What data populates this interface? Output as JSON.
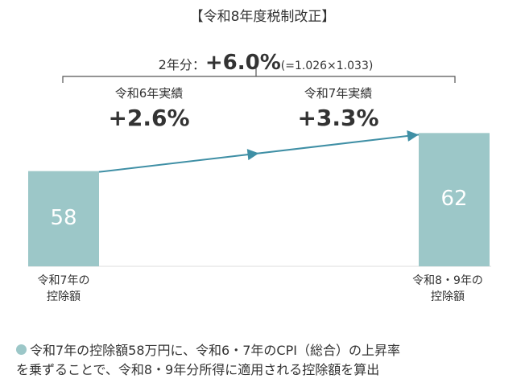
{
  "chart_data": {
    "type": "bar",
    "categories": [
      "令和7年の\n控除額",
      "令和8・9年の\n控除額"
    ],
    "values": [
      58,
      62
    ],
    "color": "#9cc7c8",
    "ylim": [
      48,
      66
    ],
    "grid": false,
    "title": "【令和8年度税制改正】",
    "total_label": "2年分：",
    "total": "+6.0%",
    "formula": "(=1.026×1.033)",
    "growth": [
      {
        "label": "令和6年実績",
        "value": "+2.6%"
      },
      {
        "label": "令和7年実績",
        "value": "+3.3%"
      }
    ],
    "note": "令和7年の控除額58万円に、令和6・7年のCPI（総合）の上昇率\nを乗ずることで、令和8・9年分所得に適用される控除額を算出"
  }
}
